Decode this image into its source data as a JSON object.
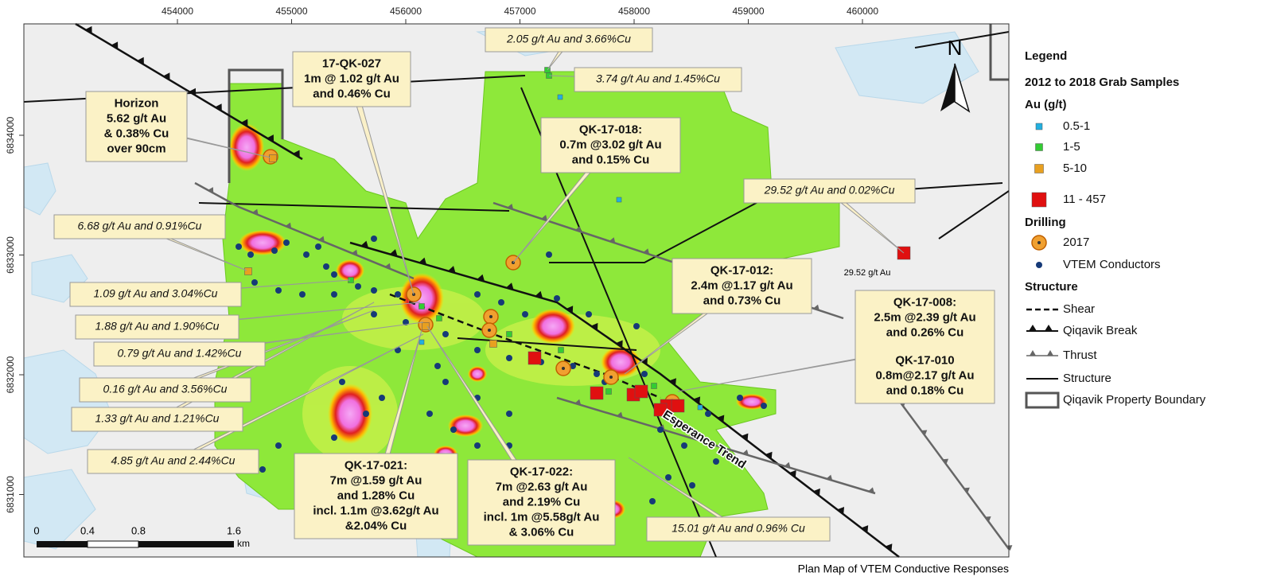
{
  "map": {
    "x_axis_labels": [
      454000,
      455000,
      456000,
      457000,
      458000,
      459000,
      460000
    ],
    "y_axis_labels": [
      6834000,
      6833000,
      6832000,
      6831000
    ],
    "north": "N",
    "callouts": [
      {
        "lines": [
          "Horizon",
          "5.62 g/t Au",
          "& 0.38% Cu",
          "over 90cm"
        ]
      },
      {
        "lines": [
          "17-QK-027",
          "1m @ 1.02 g/t Au",
          "and 0.46% Cu"
        ]
      },
      {
        "lines": [
          "2.05 g/t Au and 3.66%Cu"
        ]
      },
      {
        "lines": [
          "3.74 g/t Au and 1.45%Cu"
        ]
      },
      {
        "lines": [
          "QK-17-018:",
          "0.7m @3.02 g/t Au",
          "and 0.15% Cu"
        ]
      },
      {
        "lines": [
          "29.52 g/t Au and 0.02%Cu"
        ]
      },
      {
        "lines": [
          "6.68 g/t Au and 0.91%Cu"
        ]
      },
      {
        "lines": [
          "1.09 g/t Au and 3.04%Cu"
        ]
      },
      {
        "lines": [
          "1.88 g/t Au and 1.90%Cu"
        ]
      },
      {
        "lines": [
          "0.79 g/t Au and 1.42%Cu"
        ]
      },
      {
        "lines": [
          "0.16 g/t Au and 3.56%Cu"
        ]
      },
      {
        "lines": [
          "1.33 g/t Au and 1.21%Cu"
        ]
      },
      {
        "lines": [
          "4.85 g/t Au and 2.44%Cu"
        ]
      },
      {
        "lines": [
          "QK-17-012:",
          "2.4m @1.17 g/t Au",
          "and 0.73% Cu"
        ]
      },
      {
        "lines": [
          "QK-17-008:",
          "2.5m @2.39 g/t Au",
          "and 0.26% Cu",
          "QK-17-010",
          "0.8m@2.17 g/t Au",
          "and 0.18% Cu"
        ]
      },
      {
        "lines": [
          "QK-17-021:",
          "7m @1.59 g/t Au",
          "and 1.28% Cu",
          "incl. 1.1m @3.62g/t Au",
          "&2.04% Cu"
        ]
      },
      {
        "lines": [
          "QK-17-022:",
          "7m @2.63 g/t Au",
          "and 2.19% Cu",
          "incl. 1m @5.58g/t Au",
          "& 3.06% Cu"
        ]
      },
      {
        "lines": [
          "15.01 g/t Au and 0.96% Cu"
        ]
      }
    ],
    "annotation": "29.52 g/t Au",
    "trend_label": "Esperance Trend",
    "scale_bar": {
      "labels": [
        "0",
        "0.4",
        "0.8",
        "1.6"
      ],
      "unit": "km"
    },
    "caption": "Plan Map of VTEM Conductive Responses"
  },
  "legend": {
    "title": "Legend",
    "heading": "2012 to 2018 Grab Samples",
    "au_heading": "Au (g/t)",
    "au_classes": [
      "0.5-1",
      "1-5",
      "5-10",
      "11 - 457"
    ],
    "drilling_heading": "Drilling",
    "drilling": [
      "2017",
      "VTEM Conductors"
    ],
    "structure_heading": "Structure",
    "structure": [
      "Shear",
      "Qiqavik Break",
      "Thrust",
      "Structure",
      "Qiqavik Property Boundary"
    ]
  }
}
